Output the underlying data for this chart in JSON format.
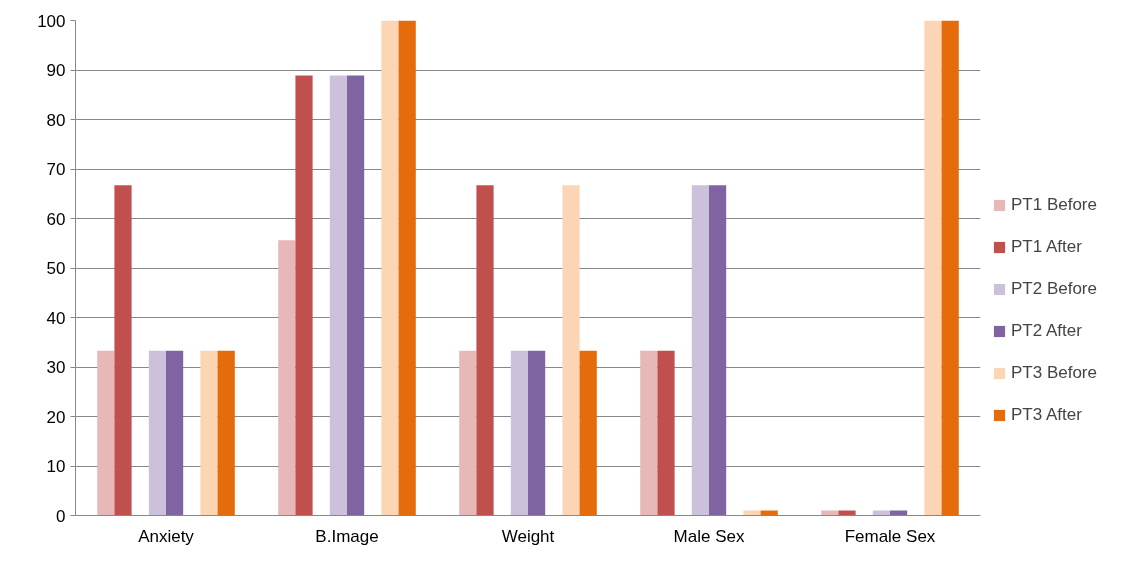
{
  "chart_data": {
    "type": "bar",
    "categories": [
      "Anxiety",
      "B.Image",
      "Weight",
      "Male Sex",
      "Female Sex"
    ],
    "series": [
      {
        "name": "PT1 Before",
        "color": "#e6b9b8",
        "values": [
          33.3,
          55.6,
          33.3,
          33.3,
          1
        ]
      },
      {
        "name": "PT1 After",
        "color": "#c0504d",
        "values": [
          66.7,
          88.9,
          66.7,
          33.3,
          1
        ]
      },
      {
        "name": "PT2 Before",
        "color": "#ccc1da",
        "values": [
          33.3,
          88.9,
          33.3,
          66.7,
          1
        ]
      },
      {
        "name": "PT2 After",
        "color": "#8064a2",
        "values": [
          33.3,
          88.9,
          33.3,
          66.7,
          1
        ]
      },
      {
        "name": "PT3 Before",
        "color": "#fcd5b5",
        "values": [
          33.3,
          100,
          66.7,
          1,
          100
        ]
      },
      {
        "name": "PT3 After",
        "color": "#e46c0a",
        "values": [
          33.3,
          100,
          33.3,
          1,
          100
        ]
      }
    ],
    "ylim": [
      0,
      100
    ],
    "yticks": [
      0,
      10,
      20,
      30,
      40,
      50,
      60,
      70,
      80,
      90,
      100
    ],
    "grid": "y",
    "legend": "right"
  }
}
